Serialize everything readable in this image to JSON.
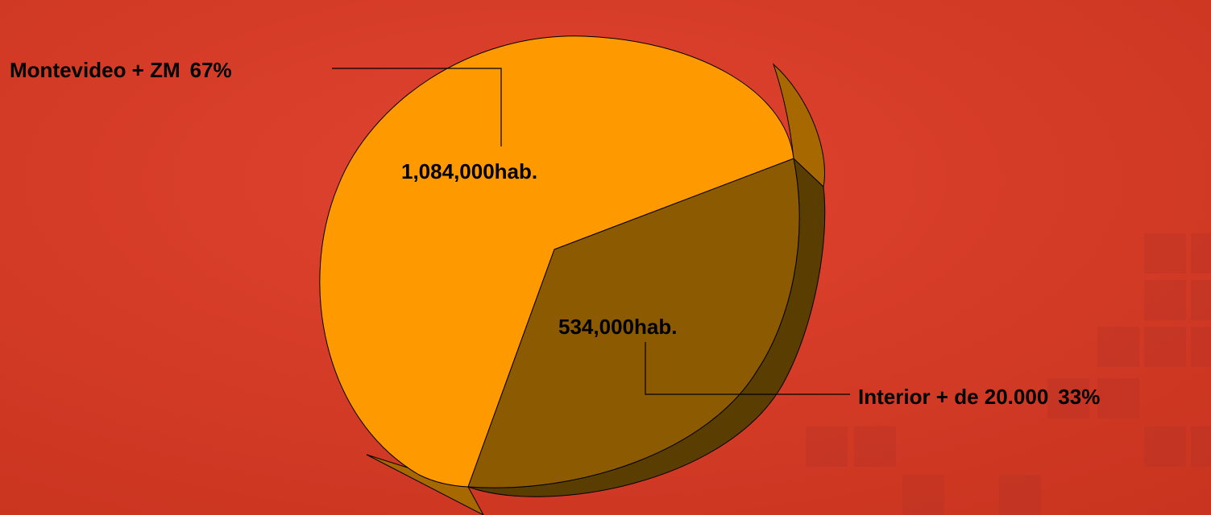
{
  "chart_data": {
    "type": "pie",
    "style": "3d",
    "slices": [
      {
        "label": "Montevideo + ZM",
        "percent": "67%",
        "value_label": "1,084,000hab.",
        "value": 1084000,
        "color": "#ff9900"
      },
      {
        "label": "Interior + de 20.000",
        "percent": "33%",
        "value_label": "534,000hab.",
        "value": 534000,
        "color": "#8c5a00"
      }
    ]
  },
  "colors": {
    "background": "#d83e2b",
    "background_dark": "#c3341f",
    "edge_light": "#a86800",
    "edge_dark": "#5a3d00",
    "leader_line": "#000000"
  }
}
